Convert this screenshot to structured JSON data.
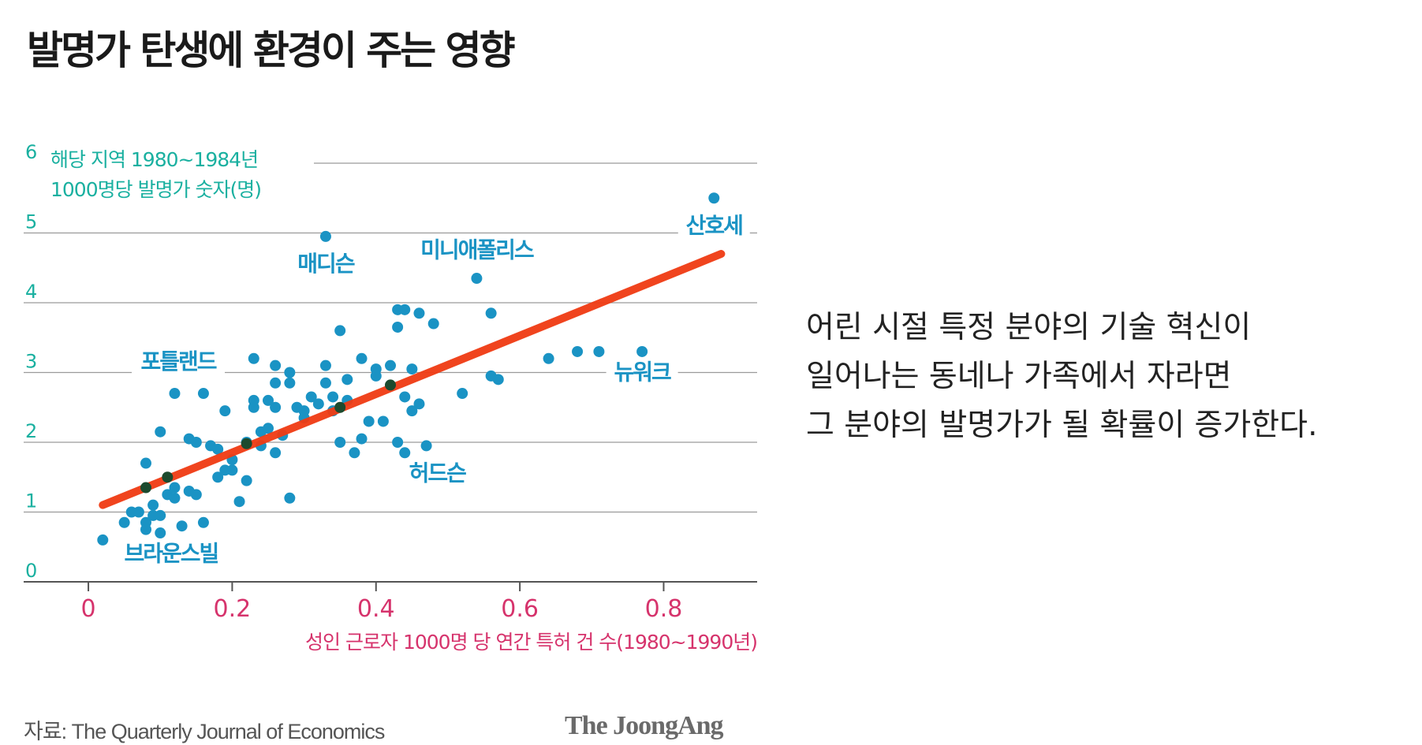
{
  "title": "발명가 탄생에 환경이 주는 영향",
  "description": {
    "lines": [
      "어린 시절 특정 분야의 기술 혁신이",
      "일어나는 동네나 가족에서 자라면",
      "그 분야의 발명가가 될 확률이 증가한다."
    ]
  },
  "footer": {
    "source": "자료: The Quarterly Journal of Economics",
    "logo": "The JoongAng"
  },
  "colors": {
    "point": "#1a93c4",
    "trend": "#f03b13",
    "ylabel": "#1ab0a0",
    "xlabel": "#d6336c",
    "grid": "#9a9a9a",
    "city_label": "#1a93c4",
    "binned_point": "#1c4a2e"
  },
  "chart_data": {
    "type": "scatter",
    "title": "발명가 탄생에 환경이 주는 영향",
    "ylabel_lines": [
      "해당 지역 1980~1984년",
      "1000명당 발명가 숫자(명)"
    ],
    "xlabel": "성인 근로자 1000명 당 연간 특허 건 수(1980~1990년)",
    "xlim": [
      -0.09,
      0.93
    ],
    "ylim": [
      0,
      6
    ],
    "xticks": [
      0,
      0.2,
      0.4,
      0.6,
      0.8
    ],
    "xtick_labels": [
      "0",
      "0.2",
      "0.4",
      "0.6",
      "0.8"
    ],
    "yticks": [
      0,
      1,
      2,
      3,
      4,
      5,
      6
    ],
    "ytick_labels": [
      "0",
      "1",
      "2",
      "3",
      "4",
      "5",
      "6"
    ],
    "grid": true,
    "trend_line": {
      "x": [
        0.02,
        0.88
      ],
      "y": [
        1.1,
        4.7
      ]
    },
    "binned_points": [
      [
        0.08,
        1.35
      ],
      [
        0.11,
        1.5
      ],
      [
        0.22,
        1.98
      ],
      [
        0.35,
        2.5
      ],
      [
        0.42,
        2.82
      ]
    ],
    "points": [
      [
        0.02,
        0.6
      ],
      [
        0.05,
        0.85
      ],
      [
        0.06,
        1.0
      ],
      [
        0.07,
        1.0
      ],
      [
        0.08,
        0.85
      ],
      [
        0.08,
        0.75
      ],
      [
        0.09,
        0.95
      ],
      [
        0.09,
        1.1
      ],
      [
        0.1,
        0.7
      ],
      [
        0.1,
        0.95
      ],
      [
        0.11,
        1.25
      ],
      [
        0.12,
        1.2
      ],
      [
        0.12,
        1.35
      ],
      [
        0.13,
        0.8
      ],
      [
        0.14,
        1.3
      ],
      [
        0.15,
        1.25
      ],
      [
        0.16,
        0.85
      ],
      [
        0.08,
        1.7
      ],
      [
        0.1,
        2.15
      ],
      [
        0.12,
        2.7
      ],
      [
        0.14,
        2.05
      ],
      [
        0.15,
        2.0
      ],
      [
        0.16,
        2.7
      ],
      [
        0.17,
        1.95
      ],
      [
        0.18,
        1.9
      ],
      [
        0.18,
        1.5
      ],
      [
        0.19,
        1.6
      ],
      [
        0.2,
        1.6
      ],
      [
        0.2,
        1.75
      ],
      [
        0.21,
        1.15
      ],
      [
        0.19,
        2.45
      ],
      [
        0.22,
        1.45
      ],
      [
        0.22,
        2.0
      ],
      [
        0.23,
        2.5
      ],
      [
        0.23,
        2.6
      ],
      [
        0.23,
        3.2
      ],
      [
        0.24,
        2.15
      ],
      [
        0.24,
        1.95
      ],
      [
        0.25,
        2.6
      ],
      [
        0.25,
        2.2
      ],
      [
        0.26,
        1.85
      ],
      [
        0.26,
        2.5
      ],
      [
        0.26,
        2.85
      ],
      [
        0.26,
        3.1
      ],
      [
        0.27,
        2.1
      ],
      [
        0.28,
        1.2
      ],
      [
        0.28,
        3.0
      ],
      [
        0.28,
        2.85
      ],
      [
        0.29,
        2.5
      ],
      [
        0.3,
        2.45
      ],
      [
        0.3,
        2.35
      ],
      [
        0.31,
        2.65
      ],
      [
        0.32,
        2.55
      ],
      [
        0.33,
        2.85
      ],
      [
        0.33,
        3.1
      ],
      [
        0.33,
        4.95
      ],
      [
        0.34,
        2.45
      ],
      [
        0.34,
        2.65
      ],
      [
        0.35,
        2.0
      ],
      [
        0.35,
        3.6
      ],
      [
        0.36,
        2.6
      ],
      [
        0.36,
        2.9
      ],
      [
        0.37,
        1.85
      ],
      [
        0.38,
        2.05
      ],
      [
        0.38,
        3.2
      ],
      [
        0.39,
        2.3
      ],
      [
        0.4,
        2.95
      ],
      [
        0.4,
        3.05
      ],
      [
        0.41,
        2.3
      ],
      [
        0.42,
        3.1
      ],
      [
        0.43,
        2.0
      ],
      [
        0.43,
        3.65
      ],
      [
        0.43,
        3.9
      ],
      [
        0.44,
        3.9
      ],
      [
        0.44,
        2.65
      ],
      [
        0.44,
        1.85
      ],
      [
        0.45,
        2.45
      ],
      [
        0.45,
        3.05
      ],
      [
        0.46,
        3.85
      ],
      [
        0.46,
        2.55
      ],
      [
        0.47,
        1.95
      ],
      [
        0.48,
        3.7
      ],
      [
        0.52,
        2.7
      ],
      [
        0.54,
        4.35
      ],
      [
        0.56,
        3.85
      ],
      [
        0.56,
        2.95
      ],
      [
        0.57,
        2.9
      ],
      [
        0.64,
        3.2
      ],
      [
        0.68,
        3.3
      ],
      [
        0.71,
        3.3
      ],
      [
        0.77,
        3.3
      ],
      [
        0.87,
        5.5
      ]
    ],
    "annotations": [
      {
        "text": "산호세",
        "x": 0.87,
        "y": 5.0
      },
      {
        "text": "매디슨",
        "x": 0.33,
        "y": 4.45
      },
      {
        "text": "미니애폴리스",
        "x": 0.54,
        "y": 4.65
      },
      {
        "text": "포틀랜드",
        "x": 0.125,
        "y": 3.05
      },
      {
        "text": "뉴워크",
        "x": 0.77,
        "y": 2.9
      },
      {
        "text": "허드슨",
        "x": 0.485,
        "y": 1.45
      },
      {
        "text": "브라운스빌",
        "x": 0.115,
        "y": 0.3
      }
    ]
  }
}
